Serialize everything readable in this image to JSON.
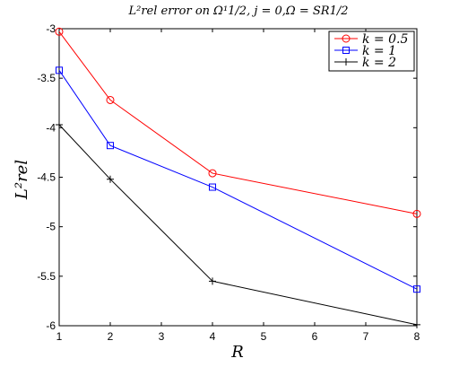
{
  "chart_data": {
    "type": "line",
    "title": "L²rel error on Ω¹1/2, j = 0,Ω = SR1/2",
    "xlabel": "R",
    "ylabel": "L²rel",
    "xlim": [
      1,
      8
    ],
    "ylim": [
      -6,
      -3
    ],
    "x_ticks": [
      "1",
      "2",
      "3",
      "4",
      "5",
      "6",
      "7",
      "8"
    ],
    "y_ticks": [
      "-3",
      "-3.5",
      "-4",
      "-4.5",
      "-5",
      "-5.5",
      "-6"
    ],
    "grid": false,
    "legend_position": "top-right",
    "x": [
      1,
      2,
      4,
      8
    ],
    "series": [
      {
        "name": "k = 0.5",
        "color": "#ff0000",
        "marker": "circle",
        "values": [
          -3.03,
          -3.72,
          -4.46,
          -4.87
        ]
      },
      {
        "name": "k = 1",
        "color": "#0000ff",
        "marker": "square",
        "values": [
          -3.42,
          -4.18,
          -4.6,
          -5.63
        ]
      },
      {
        "name": "k = 2",
        "color": "#000000",
        "marker": "plus",
        "values": [
          -3.97,
          -4.52,
          -5.55,
          -5.99
        ]
      }
    ]
  }
}
